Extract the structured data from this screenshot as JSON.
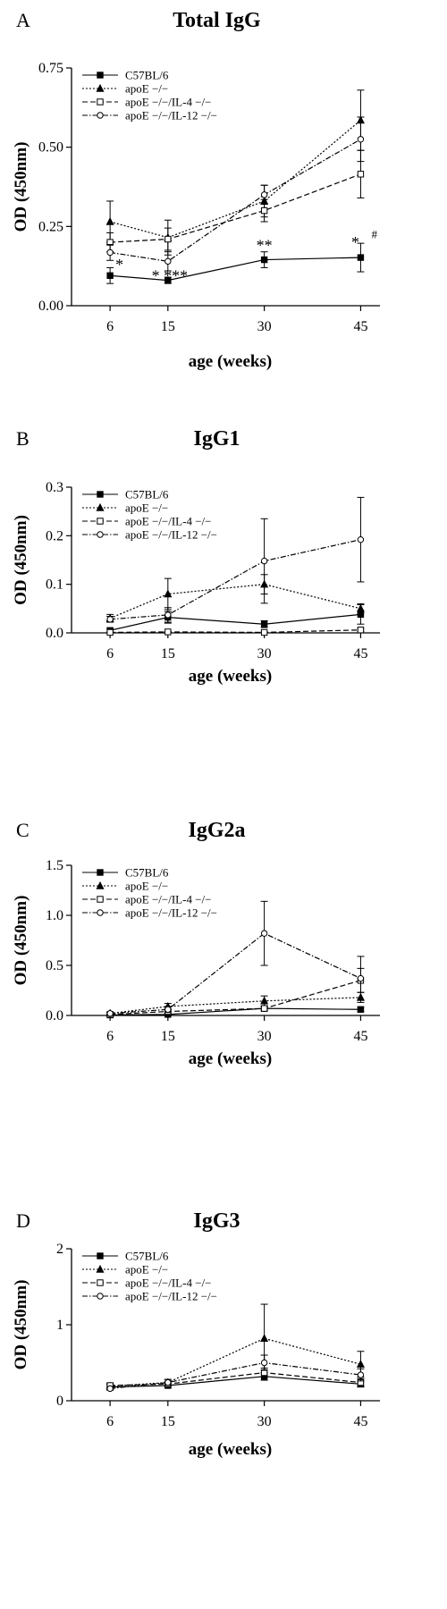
{
  "chart_data": [
    {
      "type": "line",
      "panel": "A",
      "title": "Total IgG",
      "xlabel": "age (weeks)",
      "ylabel": "OD (450nm)",
      "x": [
        6,
        15,
        30,
        45
      ],
      "xlim": [
        0,
        48
      ],
      "ylim": [
        0,
        0.75
      ],
      "yticks": [
        0.0,
        0.25,
        0.5,
        0.75
      ],
      "ytick_labels": [
        "0.00",
        "0.25",
        "0.50",
        "0.75"
      ],
      "legend_position": "top-left",
      "series": [
        {
          "name": "C57BL/6",
          "marker": "filled-square",
          "dash": "solid",
          "values": [
            0.095,
            0.08,
            0.145,
            0.152
          ],
          "err": [
            0.025,
            0.01,
            0.025,
            0.045
          ]
        },
        {
          "name": "apoE −/−",
          "marker": "filled-triangle",
          "dash": "dotted",
          "values": [
            0.265,
            0.215,
            0.33,
            0.585
          ],
          "err": [
            0.065,
            0.055,
            0.05,
            0.095
          ]
        },
        {
          "name": "apoE −/−/IL-4 −/−",
          "marker": "open-square",
          "dash": "dashed",
          "values": [
            0.2,
            0.21,
            0.3,
            0.415
          ],
          "err": [
            0.03,
            0.035,
            0.035,
            0.075
          ]
        },
        {
          "name": "apoE −/−/IL-12 −/−",
          "marker": "open-circle",
          "dash": "dashdot",
          "values": [
            0.168,
            0.14,
            0.35,
            0.525
          ],
          "err": [
            0.025,
            0.03,
            0.03,
            0.07
          ]
        }
      ],
      "annotations": [
        {
          "text": "*",
          "x": 6,
          "y": 0.13
        },
        {
          "text": "* ***",
          "x": 15,
          "y": 0.095
        },
        {
          "text": "**",
          "x": 30,
          "y": 0.19
        },
        {
          "text": "*",
          "x": 45,
          "y": 0.2
        },
        {
          "text": "#",
          "x": 45,
          "y": 0.23
        }
      ]
    },
    {
      "type": "line",
      "panel": "B",
      "title": "IgG1",
      "xlabel": "age (weeks)",
      "ylabel": "OD (450nm)",
      "x": [
        6,
        15,
        30,
        45
      ],
      "xlim": [
        0,
        48
      ],
      "ylim": [
        0,
        0.3
      ],
      "yticks": [
        0.0,
        0.1,
        0.2,
        0.3
      ],
      "ytick_labels": [
        "0.0",
        "0.1",
        "0.2",
        "0.3"
      ],
      "legend_position": "top-left",
      "series": [
        {
          "name": "C57BL/6",
          "marker": "filled-square",
          "dash": "solid",
          "values": [
            0.005,
            0.032,
            0.018,
            0.038
          ],
          "err": [
            0.004,
            0.012,
            0.007,
            0.02
          ]
        },
        {
          "name": "apoE −/−",
          "marker": "filled-triangle",
          "dash": "dotted",
          "values": [
            0.03,
            0.08,
            0.1,
            0.05
          ],
          "err": [
            0.008,
            0.032,
            0.02,
            0.01
          ]
        },
        {
          "name": "apoE −/−/IL-4 −/−",
          "marker": "open-square",
          "dash": "dashed",
          "values": [
            0.001,
            0.002,
            0.001,
            0.006
          ],
          "err": [
            0.001,
            0.001,
            0.001,
            0.003
          ]
        },
        {
          "name": "apoE −/−/IL-12 −/−",
          "marker": "open-circle",
          "dash": "dashdot",
          "values": [
            0.028,
            0.037,
            0.148,
            0.192
          ],
          "err": [
            0.006,
            0.015,
            0.087,
            0.087
          ]
        }
      ]
    },
    {
      "type": "line",
      "panel": "C",
      "title": "IgG2a",
      "xlabel": "age (weeks)",
      "ylabel": "OD (450nm)",
      "x": [
        6,
        15,
        30,
        45
      ],
      "xlim": [
        0,
        48
      ],
      "ylim": [
        0,
        1.5
      ],
      "yticks": [
        0.0,
        0.5,
        1.0,
        1.5
      ],
      "ytick_labels": [
        "0.0",
        "0.5",
        "1.0",
        "1.5"
      ],
      "legend_position": "top-left",
      "series": [
        {
          "name": "C57BL/6",
          "marker": "filled-square",
          "dash": "solid",
          "values": [
            0.005,
            0.01,
            0.07,
            0.06
          ],
          "err": [
            0.004,
            0.005,
            0.015,
            0.02
          ]
        },
        {
          "name": "apoE −/−",
          "marker": "filled-triangle",
          "dash": "dotted",
          "values": [
            0.02,
            0.09,
            0.145,
            0.18
          ],
          "err": [
            0.01,
            0.03,
            0.05,
            0.05
          ]
        },
        {
          "name": "apoE −/−/IL-4 −/−",
          "marker": "open-square",
          "dash": "dashed",
          "values": [
            0.01,
            0.04,
            0.07,
            0.35
          ],
          "err": [
            0.005,
            0.02,
            0.02,
            0.12
          ]
        },
        {
          "name": "apoE −/−/IL-12 −/−",
          "marker": "open-circle",
          "dash": "dashdot",
          "values": [
            0.02,
            0.06,
            0.82,
            0.37
          ],
          "err": [
            0.01,
            0.03,
            0.32,
            0.22
          ]
        }
      ]
    },
    {
      "type": "line",
      "panel": "D",
      "title": "IgG3",
      "xlabel": "age (weeks)",
      "ylabel": "OD (450nm)",
      "x": [
        6,
        15,
        30,
        45
      ],
      "xlim": [
        0,
        48
      ],
      "ylim": [
        0,
        2
      ],
      "yticks": [
        0,
        1,
        2
      ],
      "ytick_labels": [
        "0",
        "1",
        "2"
      ],
      "legend_position": "top-left",
      "series": [
        {
          "name": "C57BL/6",
          "marker": "filled-square",
          "dash": "solid",
          "values": [
            0.18,
            0.2,
            0.32,
            0.22
          ],
          "err": [
            0.03,
            0.03,
            0.05,
            0.04
          ]
        },
        {
          "name": "apoE −/−",
          "marker": "filled-triangle",
          "dash": "dotted",
          "values": [
            0.19,
            0.24,
            0.82,
            0.48
          ],
          "err": [
            0.03,
            0.04,
            0.45,
            0.17
          ]
        },
        {
          "name": "apoE −/−/IL-4 −/−",
          "marker": "open-square",
          "dash": "dashed",
          "values": [
            0.2,
            0.22,
            0.37,
            0.24
          ],
          "err": [
            0.03,
            0.03,
            0.06,
            0.05
          ]
        },
        {
          "name": "apoE −/−/IL-12 −/−",
          "marker": "open-circle",
          "dash": "dashdot",
          "values": [
            0.16,
            0.24,
            0.5,
            0.34
          ],
          "err": [
            0.02,
            0.04,
            0.1,
            0.08
          ]
        }
      ]
    }
  ]
}
